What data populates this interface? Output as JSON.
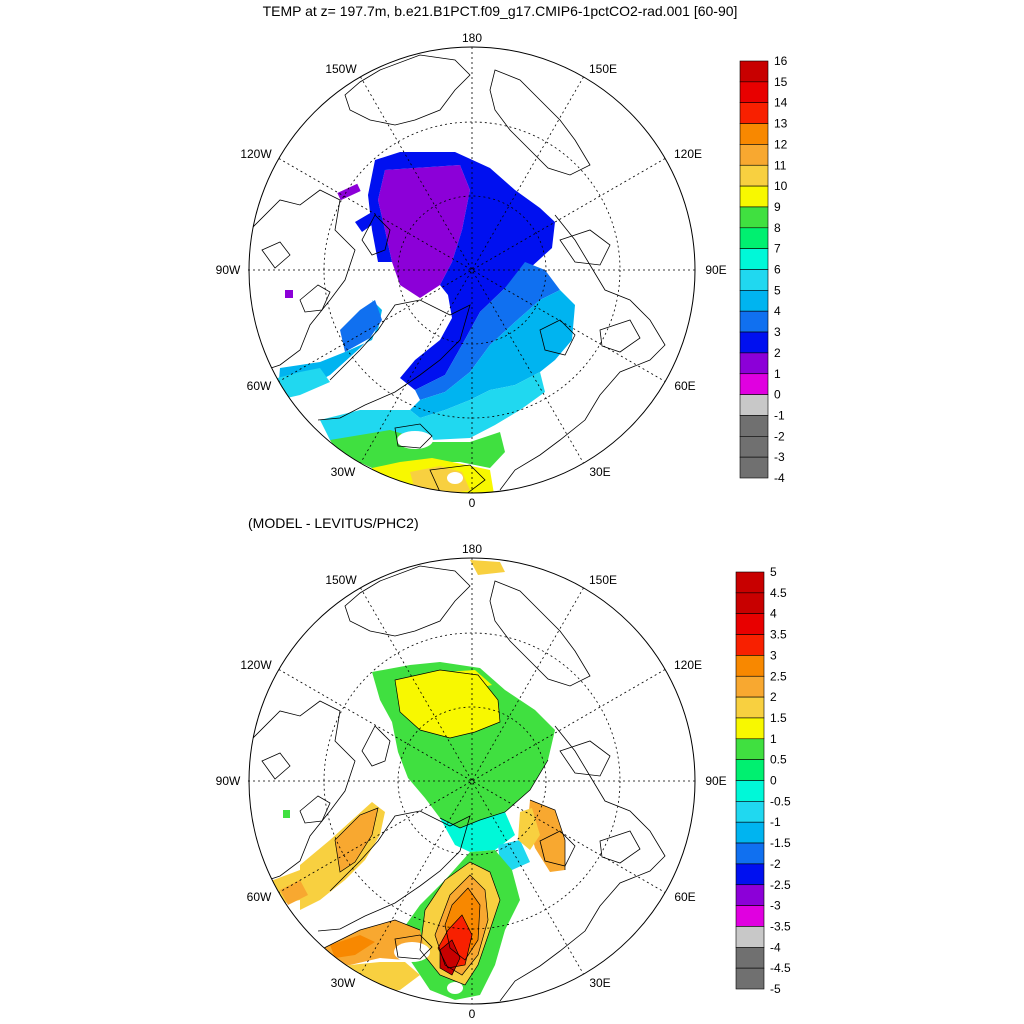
{
  "title": "TEMP at z= 197.7m, b.e21.B1PCT.f09_g17.CMIP6-1pctCO2-rad.001 [60-90]",
  "subtitle": "(MODEL - LEVITUS/PHC2)",
  "lon_labels": [
    "180",
    "150E",
    "120E",
    "90E",
    "60E",
    "30E",
    "0",
    "30W",
    "60W",
    "90W",
    "120W",
    "150W"
  ],
  "colors": {
    "temp_levels": [
      "#707070",
      "#c8c8c8",
      "#e000e0",
      "#8c00d8",
      "#0010f0",
      "#1070f0",
      "#00b4f0",
      "#20d8f0",
      "#00f8d8",
      "#00f070",
      "#40e040",
      "#f8f800",
      "#f8d040",
      "#f8a830",
      "#f88800",
      "#f82000",
      "#e80000",
      "#c80000"
    ],
    "diff_levels": [
      "#707070",
      "#c8c8c8",
      "#e000e0",
      "#8c00d8",
      "#0010f0",
      "#1070f0",
      "#00b4f0",
      "#20d8f0",
      "#00f8d8",
      "#00f070",
      "#40e040",
      "#f8f800",
      "#f8d040",
      "#f8a830",
      "#f88800",
      "#f82000",
      "#e80000",
      "#c80000",
      "#c80000"
    ]
  },
  "panels": [
    {
      "name": "temperature",
      "colorbar_labels": [
        "16",
        "15",
        "14",
        "13",
        "12",
        "11",
        "10",
        "9",
        "8",
        "7",
        "6",
        "5",
        "4",
        "3",
        "2",
        "1",
        "0",
        "-1",
        "-2",
        "-3",
        "-4"
      ]
    },
    {
      "name": "difference",
      "colorbar_labels": [
        "5",
        "4.5",
        "4",
        "3.5",
        "3",
        "2.5",
        "2",
        "1.5",
        "1",
        "0.5",
        "0",
        "-0.5",
        "-1",
        "-1.5",
        "-2",
        "-2.5",
        "-3",
        "-3.5",
        "-4",
        "-4.5",
        "-5"
      ]
    }
  ]
}
